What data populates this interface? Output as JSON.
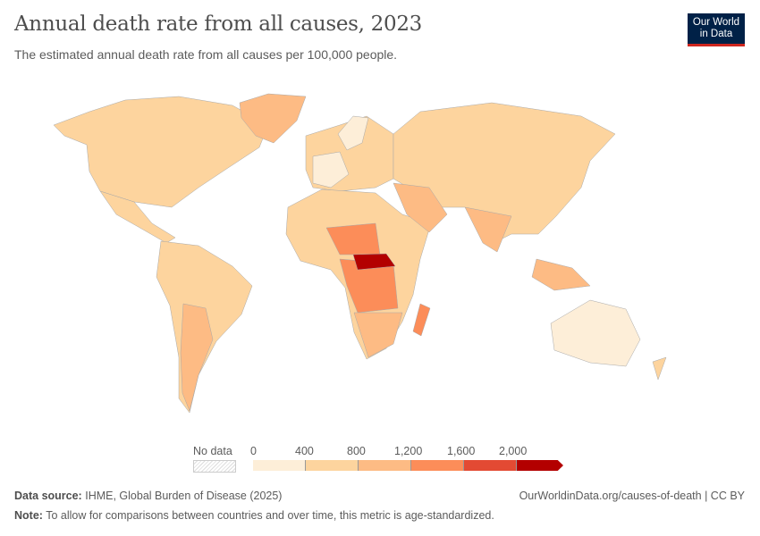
{
  "header": {
    "title": "Annual death rate from all causes, 2023",
    "subtitle": "The estimated annual death rate from all causes per 100,000 people.",
    "logo_text": "Our World in Data",
    "logo_line1": "Our World",
    "logo_line2": "in Data"
  },
  "legend": {
    "no_data_label": "No data",
    "ticks": [
      "0",
      "400",
      "800",
      "1,200",
      "1,600",
      "2,000"
    ],
    "bins": [
      {
        "range": "0-400",
        "color": "#fdeed8"
      },
      {
        "range": "400-800",
        "color": "#fdd49e"
      },
      {
        "range": "800-1,200",
        "color": "#fdbb84"
      },
      {
        "range": "1,200-1,600",
        "color": "#fc8d59"
      },
      {
        "range": "1,600-2,000",
        "color": "#e34a33"
      },
      {
        "range": ">2,000",
        "color": "#b30000"
      }
    ]
  },
  "footer": {
    "source_label": "Data source:",
    "source": "IHME, Global Burden of Disease (2025)",
    "url": "OurWorldinData.org/causes-of-death | CC BY",
    "note_label": "Note:",
    "note": "To allow for comparisons between countries and over time, this metric is age-standardized."
  }
}
